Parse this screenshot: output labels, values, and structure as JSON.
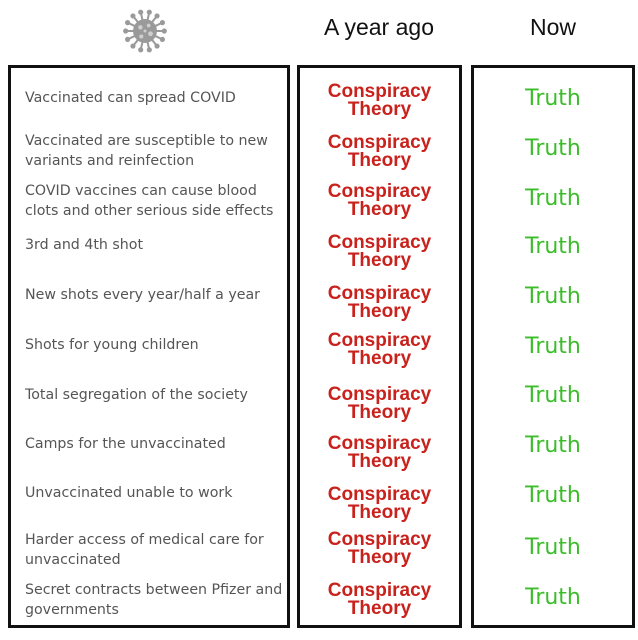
{
  "header": {
    "icon": "virus-icon",
    "col_ago": "A year ago",
    "col_now": "Now"
  },
  "colors": {
    "conspiracy": "#c9221c",
    "truth": "#3bbd2a",
    "claim_text": "#555555"
  },
  "rows": [
    {
      "claim": "Vaccinated can spread COVID",
      "ago": "Conspiracy Theory",
      "now": "Truth"
    },
    {
      "claim": "Vaccinated are susceptible to new variants and reinfection",
      "ago": "Conspiracy Theory",
      "now": "Truth"
    },
    {
      "claim": "COVID vaccines can cause blood clots and other serious side effects",
      "ago": "Conspiracy Theory",
      "now": "Truth"
    },
    {
      "claim": "3rd and 4th shot",
      "ago": "Conspiracy Theory",
      "now": "Truth"
    },
    {
      "claim": "New shots every year/half a year",
      "ago": "Conspiracy Theory",
      "now": "Truth"
    },
    {
      "claim": "Shots for young children",
      "ago": "Conspiracy Theory",
      "now": "Truth"
    },
    {
      "claim": "Total segregation of the society",
      "ago": "Conspiracy Theory",
      "now": "Truth"
    },
    {
      "claim": "Camps for the unvaccinated",
      "ago": "Conspiracy Theory",
      "now": "Truth"
    },
    {
      "claim": "Unvaccinated unable to work",
      "ago": "Conspiracy Theory",
      "now": "Truth"
    },
    {
      "claim": "Harder access of medical care for unvaccinated",
      "ago": "Conspiracy Theory",
      "now": "Truth"
    },
    {
      "claim": "Secret contracts between Pfizer and governments",
      "ago": "Conspiracy Theory",
      "now": "Truth"
    }
  ]
}
